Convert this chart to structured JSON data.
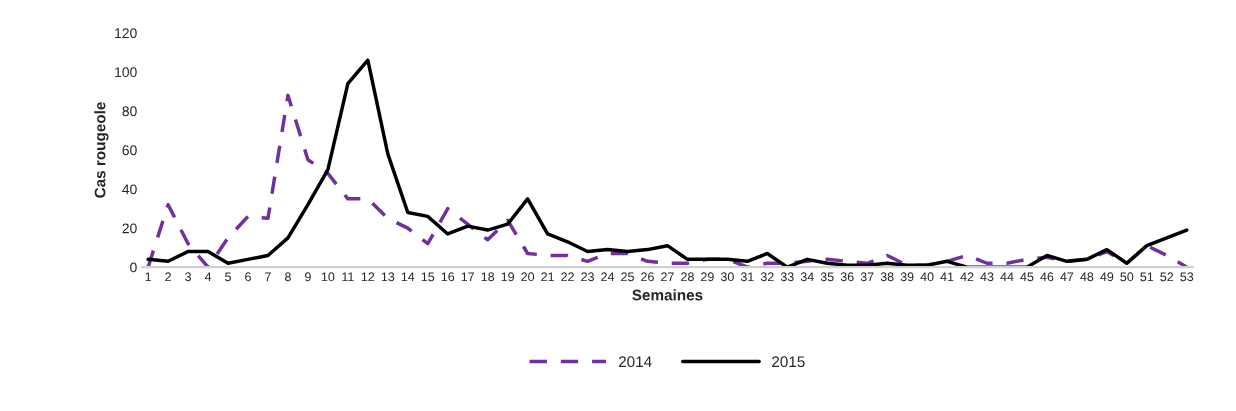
{
  "chart_data": {
    "type": "line",
    "xlabel": "Semaines",
    "ylabel": "Cas rougeole",
    "categories": [
      "1",
      "2",
      "3",
      "4",
      "5",
      "6",
      "7",
      "8",
      "9",
      "10",
      "11",
      "12",
      "13",
      "14",
      "15",
      "16",
      "17",
      "18",
      "19",
      "20",
      "21",
      "22",
      "23",
      "24",
      "25",
      "26",
      "27",
      "28",
      "29",
      "30",
      "31",
      "32",
      "33",
      "34",
      "35",
      "36",
      "37",
      "38",
      "39",
      "40",
      "41",
      "42",
      "43",
      "44",
      "45",
      "46",
      "47",
      "48",
      "49",
      "50",
      "51",
      "52",
      "53"
    ],
    "series": [
      {
        "name": "2014",
        "color": "#7030a0",
        "line_style": "dashed",
        "values": [
          0,
          32,
          12,
          0,
          15,
          26,
          25,
          88,
          55,
          48,
          35,
          35,
          25,
          20,
          12,
          30,
          22,
          14,
          24,
          7,
          6,
          6,
          3,
          7,
          7,
          3,
          2,
          2,
          4,
          4,
          0,
          2,
          2,
          3,
          4,
          3,
          2,
          6,
          1,
          1,
          3,
          6,
          2,
          2,
          4,
          5,
          3,
          4,
          8,
          2,
          11,
          6,
          0
        ]
      },
      {
        "name": "2015",
        "color": "#000000",
        "line_style": "solid",
        "values": [
          4,
          3,
          8,
          8,
          2,
          4,
          6,
          15,
          32,
          50,
          94,
          106,
          58,
          28,
          26,
          17,
          21,
          19,
          22,
          35,
          17,
          13,
          8,
          9,
          8,
          9,
          11,
          4,
          4,
          4,
          3,
          7,
          0,
          4,
          2,
          1,
          1,
          2,
          1,
          1,
          3,
          0,
          0,
          0,
          0,
          6,
          3,
          4,
          9,
          2,
          11,
          15,
          19
        ]
      }
    ],
    "ylim": [
      0,
      120
    ],
    "yticks": [
      0,
      20,
      40,
      60,
      80,
      100,
      120
    ],
    "grid": false,
    "legend": "bottom"
  }
}
